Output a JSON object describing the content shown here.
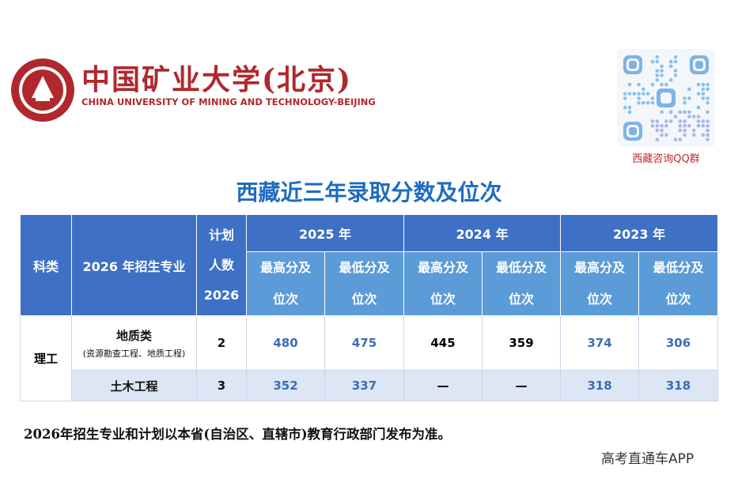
{
  "header": {
    "university_cn": "中国矿业大学(北京)",
    "university_en": "CHINA UNIVERSITY OF MINING AND TECHNOLOGY-BEIJING",
    "qr_caption": "西藏咨询QQ群"
  },
  "title": "西藏近三年录取分数及位次",
  "table": {
    "headers": {
      "category": "科类",
      "major": "2026 年招生专业",
      "plan": [
        "计划",
        "人数",
        "2026"
      ],
      "years": [
        "2025 年",
        "2024 年",
        "2023 年"
      ],
      "sub": [
        "最高分及位次",
        "最低分及位次"
      ]
    },
    "category": "理工",
    "rows": [
      {
        "major": "地质类",
        "detail": "(资源勘查工程、地质工程)",
        "plan": 2,
        "values": [
          480,
          475,
          445,
          359,
          374,
          306
        ]
      },
      {
        "major": "土木工程",
        "plan": 3,
        "values": [
          352,
          337,
          "—",
          "—",
          318,
          318
        ]
      }
    ]
  },
  "note": "2026年招生专业和计划以本省(自治区、直辖市)教育行政部门发布为准。",
  "watermark": "高考直通车APP"
}
